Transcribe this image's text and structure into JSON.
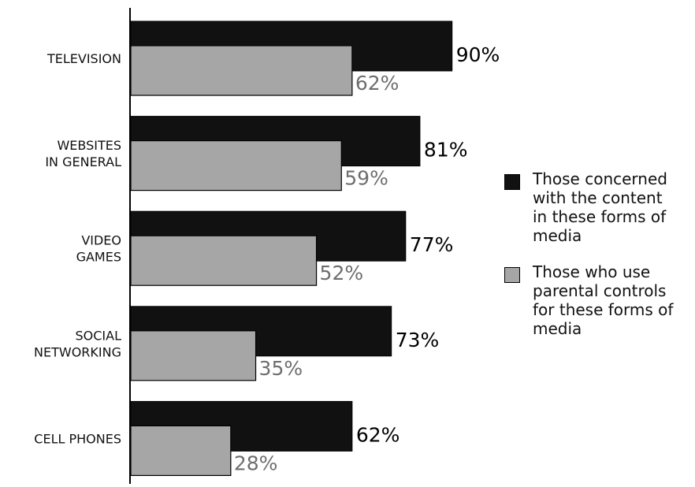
{
  "chart_data": {
    "type": "bar",
    "orientation": "horizontal",
    "categories": [
      [
        "TELEVISION"
      ],
      [
        "WEBSITES",
        "IN GENERAL"
      ],
      [
        "VIDEO",
        "GAMES"
      ],
      [
        "SOCIAL",
        "NETWORKING"
      ],
      [
        "CELL PHONES"
      ]
    ],
    "series": [
      {
        "name": "Those concerned with the content in these forms of media",
        "values": [
          90,
          81,
          77,
          73,
          62
        ],
        "labels": [
          "90%",
          "81%",
          "77%",
          "73%",
          "62%"
        ],
        "color": "#111111"
      },
      {
        "name": "Those who use parental controls for these forms of media",
        "values": [
          62,
          59,
          52,
          35,
          28
        ],
        "labels": [
          "62%",
          "59%",
          "52%",
          "35%",
          "28%"
        ],
        "color": "#a6a6a6"
      }
    ],
    "xlim": [
      0,
      100
    ],
    "grid": false,
    "legend_position": "right",
    "colors": {
      "concerned": "#111111",
      "controls": "#a6a6a6",
      "controls_label": "#6e6e6e",
      "axis": "#000000"
    }
  },
  "legend": {
    "concerned_line1": "Those concerned",
    "concerned_line2": "with the content",
    "concerned_line3": "in these forms of",
    "concerned_line4": "media",
    "controls_line1": "Those who use",
    "controls_line2": "parental controls",
    "controls_line3": "for these forms of",
    "controls_line4": "media"
  }
}
